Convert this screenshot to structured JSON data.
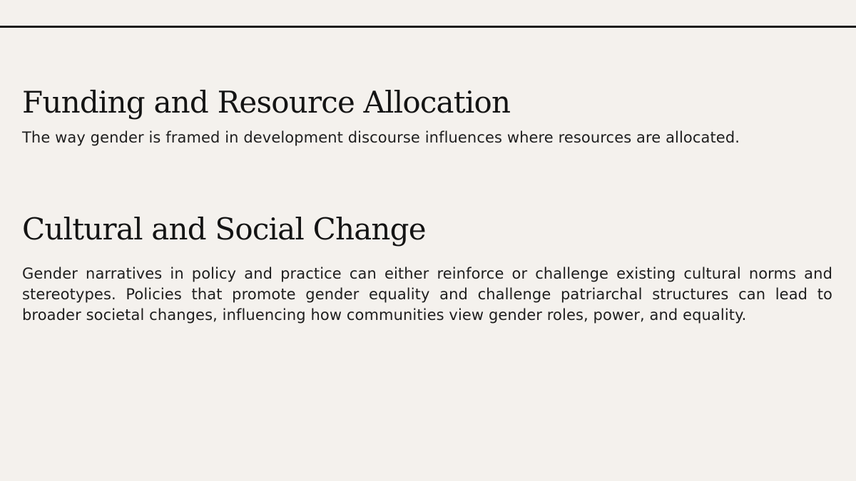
{
  "sections": [
    {
      "heading": "Funding and Resource Allocation",
      "body": "The way gender is framed in development discourse influences where resources are allocated."
    },
    {
      "heading": "Cultural and Social Change",
      "body": "Gender narratives in policy and practice can either reinforce or challenge existing cultural norms and stereotypes. Policies that promote gender equality and challenge patriarchal structures can lead to broader societal changes, influencing how communities view gender roles, power, and equality."
    }
  ]
}
